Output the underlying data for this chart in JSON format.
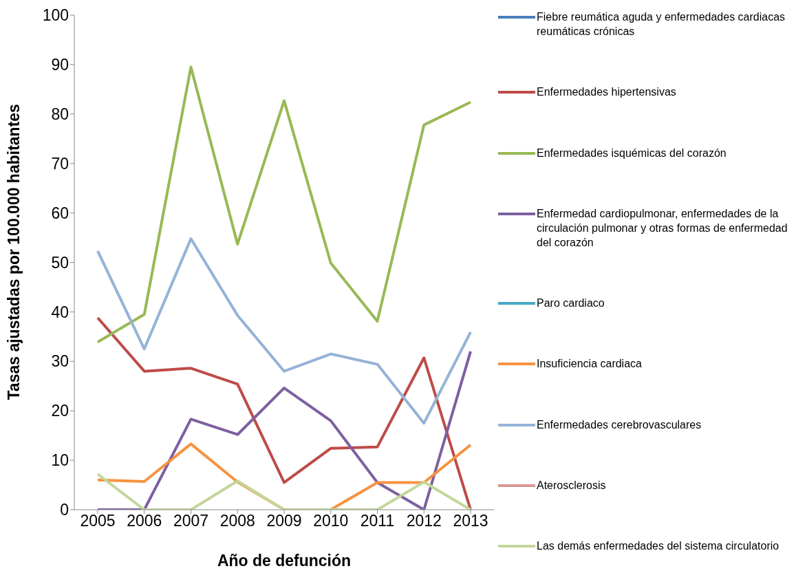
{
  "chart_data": {
    "type": "line",
    "xlabel": "Año de defunción",
    "ylabel": "Tasas ajustadas por 100.000 habitantes",
    "categories": [
      "2005",
      "2006",
      "2007",
      "2008",
      "2009",
      "2010",
      "2011",
      "2012",
      "2013"
    ],
    "ylim": [
      0,
      100
    ],
    "yticks": [
      0,
      10,
      20,
      30,
      40,
      50,
      60,
      70,
      80,
      90,
      100
    ],
    "grid": false,
    "legend": "right",
    "marker": "none",
    "line_style": "solid",
    "series": [
      {
        "name": "Fiebre reumática aguda y enfermedades cardiacas reumáticas crónicas",
        "color": "#4a7ebb",
        "values": [
          null,
          null,
          null,
          null,
          null,
          null,
          null,
          null,
          null
        ]
      },
      {
        "name": "Enfermedades hipertensivas",
        "color": "#be4b48",
        "values": [
          38.8,
          28,
          28.6,
          25.4,
          5.5,
          12.4,
          12.7,
          30.7,
          0
        ]
      },
      {
        "name": "Enfermedades isquémicas del corazón",
        "color": "#98b954",
        "values": [
          33.9,
          39.5,
          89.5,
          53.7,
          82.7,
          49.9,
          38.1,
          77.8,
          82.4
        ]
      },
      {
        "name": "Enfermedad cardiopulmonar, enfermedades de la circulación pulmonar y otras formas de enfermedad del corazón",
        "color": "#7d60a0",
        "values": [
          0,
          0,
          18.3,
          15.2,
          24.6,
          18,
          5.5,
          0,
          32
        ]
      },
      {
        "name": "Paro cardiaco",
        "color": "#46aac5",
        "values": [
          null,
          null,
          null,
          null,
          null,
          null,
          null,
          null,
          null
        ]
      },
      {
        "name": "Insuficiencia cardiaca",
        "color": "#f69240",
        "values": [
          6,
          5.7,
          13.3,
          5.6,
          0,
          0,
          5.5,
          5.5,
          13.1
        ]
      },
      {
        "name": "Enfermedades cerebrovasculares",
        "color": "#95b3d7",
        "values": [
          52.3,
          32.5,
          54.8,
          39.3,
          28,
          31.5,
          29.4,
          17.5,
          35.9
        ]
      },
      {
        "name": "Aterosclerosis",
        "color": "#d99694",
        "values": [
          null,
          null,
          null,
          null,
          null,
          null,
          null,
          null,
          null
        ]
      },
      {
        "name": "Las demás enfermedades del sistema circulatorio",
        "color": "#c3d69b",
        "values": [
          7.2,
          0,
          0,
          5.8,
          0,
          0,
          0,
          5.6,
          0
        ]
      }
    ]
  }
}
